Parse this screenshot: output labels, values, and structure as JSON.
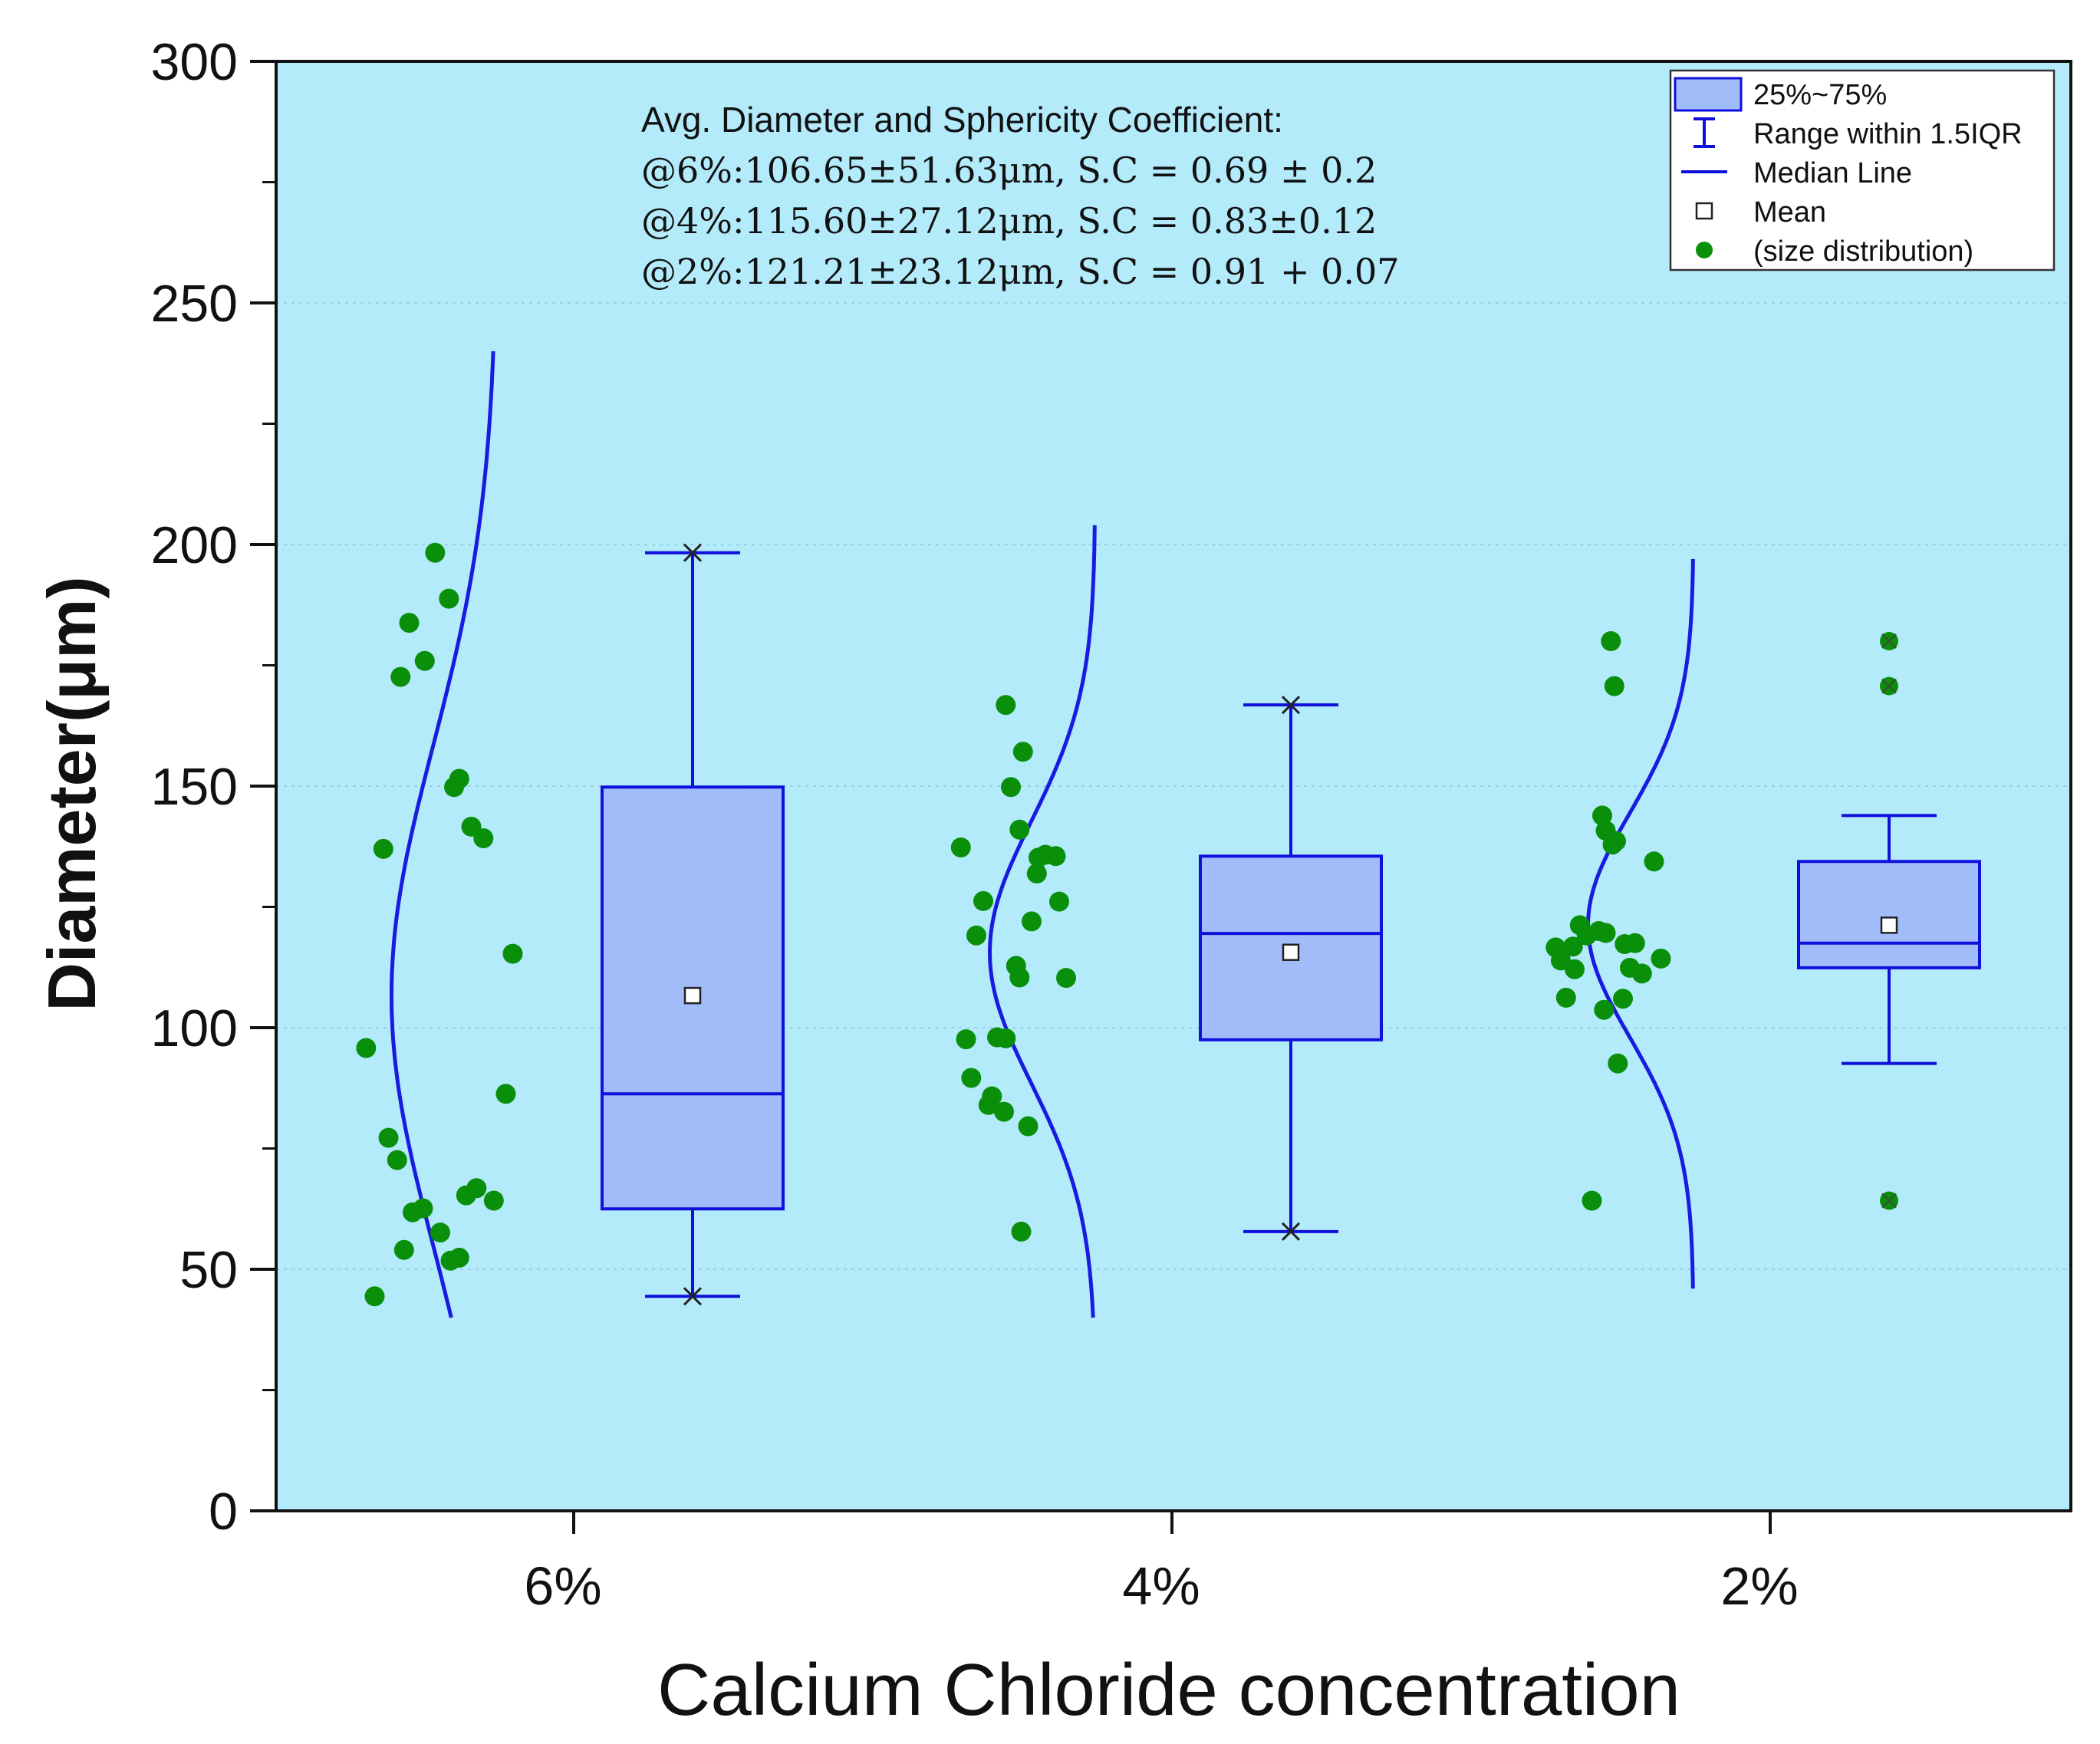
{
  "chart_data": {
    "type": "box",
    "title": "",
    "xlabel": "Calcium Chloride concentration",
    "ylabel": "Diameter(μm)",
    "ylim": [
      0,
      300
    ],
    "yticks": [
      0,
      50,
      100,
      150,
      200,
      250,
      300
    ],
    "grid": "dotted horizontal",
    "categories": [
      "6%",
      "4%",
      "2%"
    ],
    "colors": {
      "plot_background": "#b3ebfb",
      "box_fill": "#a0bdfa",
      "box_edge": "#1010dd",
      "curve": "#1a1ae0",
      "point": "#0a8f0a"
    },
    "annotation": {
      "title": "Avg. Diameter and Sphericity Coefficient:",
      "lines": [
        "@6%:106.65±51.63μm, S.C = 0.69 ± 0.2",
        "@4%:115.60±27.12μm, S.C = 0.83±0.12",
        "@2%:121.21±23.12μm, S.C = 0.91 + 0.07"
      ]
    },
    "legend": {
      "position": "top-right",
      "items": [
        {
          "symbol": "box",
          "label": "25%~75%"
        },
        {
          "symbol": "whisker",
          "label": "Range within 1.5IQR"
        },
        {
          "symbol": "line",
          "label": "Median Line"
        },
        {
          "symbol": "square",
          "label": "Mean"
        },
        {
          "symbol": "dot",
          "label": "(size distribution)"
        }
      ]
    },
    "groups": [
      {
        "label": "6%",
        "q1": 62.5,
        "median": 86.3,
        "q3": 149.8,
        "mean": 106.65,
        "whisker_low": 44.4,
        "whisker_high": 198.3,
        "outliers": [],
        "curve": {
          "mean": 106.65,
          "sd": 51.63,
          "y_range": [
            40,
            240
          ]
        },
        "points": [
          {
            "y": 198.3,
            "jitter": 0.27
          },
          {
            "y": 188.8,
            "jitter": 0.19
          },
          {
            "y": 183.8,
            "jitter": 0.42
          },
          {
            "y": 175.9,
            "jitter": 0.33
          },
          {
            "y": 172.6,
            "jitter": 0.47
          },
          {
            "y": 151.5,
            "jitter": 0.13
          },
          {
            "y": 149.8,
            "jitter": 0.16
          },
          {
            "y": 141.6,
            "jitter": 0.06
          },
          {
            "y": 139.2,
            "jitter": -0.01
          },
          {
            "y": 137.0,
            "jitter": 0.57
          },
          {
            "y": 115.3,
            "jitter": -0.18
          },
          {
            "y": 95.8,
            "jitter": 0.67
          },
          {
            "y": 86.3,
            "jitter": -0.14
          },
          {
            "y": 77.2,
            "jitter": 0.54
          },
          {
            "y": 72.6,
            "jitter": 0.49
          },
          {
            "y": 66.8,
            "jitter": 0.03
          },
          {
            "y": 65.3,
            "jitter": 0.09
          },
          {
            "y": 64.2,
            "jitter": -0.07
          },
          {
            "y": 62.6,
            "jitter": 0.34
          },
          {
            "y": 61.8,
            "jitter": 0.4
          },
          {
            "y": 57.6,
            "jitter": 0.24
          },
          {
            "y": 54.0,
            "jitter": 0.45
          },
          {
            "y": 52.4,
            "jitter": 0.13
          },
          {
            "y": 51.8,
            "jitter": 0.18
          },
          {
            "y": 44.4,
            "jitter": 0.62
          }
        ]
      },
      {
        "label": "4%",
        "q1": 97.5,
        "median": 119.5,
        "q3": 135.5,
        "mean": 115.6,
        "whisker_low": 57.8,
        "whisker_high": 166.8,
        "outliers": [],
        "curve": {
          "mean": 115.6,
          "sd": 27.12,
          "y_range": [
            40,
            204
          ]
        },
        "points": [
          {
            "y": 166.8,
            "jitter": 0.43
          },
          {
            "y": 157.1,
            "jitter": 0.33
          },
          {
            "y": 149.8,
            "jitter": 0.4
          },
          {
            "y": 141.0,
            "jitter": 0.35
          },
          {
            "y": 137.3,
            "jitter": 0.69
          },
          {
            "y": 135.8,
            "jitter": 0.2
          },
          {
            "y": 135.5,
            "jitter": 0.14
          },
          {
            "y": 135.2,
            "jitter": 0.24
          },
          {
            "y": 131.9,
            "jitter": 0.25
          },
          {
            "y": 126.2,
            "jitter": 0.56
          },
          {
            "y": 126.1,
            "jitter": 0.12
          },
          {
            "y": 122.0,
            "jitter": 0.28
          },
          {
            "y": 119.1,
            "jitter": 0.6
          },
          {
            "y": 112.8,
            "jitter": 0.37
          },
          {
            "y": 110.4,
            "jitter": 0.35
          },
          {
            "y": 110.3,
            "jitter": 0.08
          },
          {
            "y": 98.0,
            "jitter": 0.48
          },
          {
            "y": 97.8,
            "jitter": 0.43
          },
          {
            "y": 97.6,
            "jitter": 0.66
          },
          {
            "y": 89.6,
            "jitter": 0.63
          },
          {
            "y": 85.8,
            "jitter": 0.51
          },
          {
            "y": 84.0,
            "jitter": 0.53
          },
          {
            "y": 82.6,
            "jitter": 0.44
          },
          {
            "y": 79.6,
            "jitter": 0.3
          },
          {
            "y": 57.8,
            "jitter": 0.34
          }
        ]
      },
      {
        "label": "2%",
        "q1": 112.4,
        "median": 117.5,
        "q3": 134.4,
        "mean": 121.21,
        "whisker_low": 92.6,
        "whisker_high": 143.9,
        "outliers": [
          180.0,
          170.7,
          64.2
        ],
        "curve": {
          "mean": 121.21,
          "sd": 23.12,
          "y_range": [
            46,
            197
          ]
        },
        "points": [
          {
            "y": 180.0,
            "jitter": 0.39
          },
          {
            "y": 170.7,
            "jitter": 0.37
          },
          {
            "y": 143.9,
            "jitter": 0.44
          },
          {
            "y": 140.8,
            "jitter": 0.42
          },
          {
            "y": 138.6,
            "jitter": 0.36
          },
          {
            "y": 137.9,
            "jitter": 0.38
          },
          {
            "y": 134.4,
            "jitter": 0.14
          },
          {
            "y": 121.2,
            "jitter": 0.57
          },
          {
            "y": 120.0,
            "jitter": 0.46
          },
          {
            "y": 119.6,
            "jitter": 0.42
          },
          {
            "y": 119.1,
            "jitter": 0.53
          },
          {
            "y": 117.5,
            "jitter": 0.25
          },
          {
            "y": 117.3,
            "jitter": 0.31
          },
          {
            "y": 116.8,
            "jitter": 0.61
          },
          {
            "y": 116.6,
            "jitter": 0.71
          },
          {
            "y": 114.3,
            "jitter": 0.1
          },
          {
            "y": 113.9,
            "jitter": 0.68
          },
          {
            "y": 112.4,
            "jitter": 0.28
          },
          {
            "y": 112.1,
            "jitter": 0.6
          },
          {
            "y": 111.2,
            "jitter": 0.21
          },
          {
            "y": 106.2,
            "jitter": 0.65
          },
          {
            "y": 106.0,
            "jitter": 0.32
          },
          {
            "y": 103.7,
            "jitter": 0.43
          },
          {
            "y": 92.6,
            "jitter": 0.35
          },
          {
            "y": 64.2,
            "jitter": 0.5
          }
        ]
      }
    ]
  }
}
